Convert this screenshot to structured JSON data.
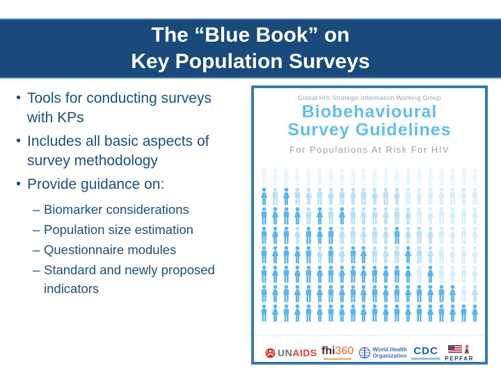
{
  "slide": {
    "title_line1": "The “Blue Book” on",
    "title_line2": "Key Population Surveys",
    "bullets": [
      {
        "lines": [
          "Tools for conducting surveys",
          "with KPs"
        ]
      },
      {
        "lines": [
          "Includes all basic aspects of",
          "survey methodology"
        ]
      },
      {
        "lines": [
          "Provide guidance on:"
        ]
      }
    ],
    "sub_bullets": [
      {
        "lines": [
          "Biomarker considerations"
        ]
      },
      {
        "lines": [
          "Population size estimation"
        ]
      },
      {
        "lines": [
          "Questionnaire modules"
        ]
      },
      {
        "lines": [
          "Standard and newly proposed",
          "indicators"
        ]
      }
    ]
  },
  "cover": {
    "kicker": "Global HIV Strategic Information Working Group",
    "title_line1": "Biobehavioural",
    "title_line2": "Survey Guidelines",
    "subtitle": "For Populations At Risk For HIV",
    "logos": {
      "unaids_un": "UN",
      "unaids_aids": "AIDS",
      "fhi": "fhi",
      "fhi_num": "360",
      "who_line1": "World Health",
      "who_line2": "Organization",
      "cdc": "CDC",
      "pepfar": "PEPFAR"
    },
    "people_grid": {
      "cols": 20,
      "colors": {
        "d": "#5fb6e8",
        "m": "#bce0f4",
        "l": "#daeef9",
        "u": "#ebf5fc"
      },
      "rows": [
        {
          "start": "M",
          "shades": "uuuuuuuuuuuuuuuuuuuu"
        },
        {
          "start": "F",
          "shades": "dmdmmmmmmmmmmlllllll"
        },
        {
          "start": "M",
          "shades": "ddddmdmdmmmmmmllllll"
        },
        {
          "start": "M",
          "shades": "dddmdddmmmmmdmmmllll"
        },
        {
          "start": "M",
          "shades": "dddddmdmddmmmdmmllll"
        },
        {
          "start": "M",
          "shades": "ddddddddddddddldllll"
        },
        {
          "start": "M",
          "shades": "ddddddddddddddddddlm"
        },
        {
          "start": "M",
          "shades": "dddddddddddddddddddd"
        }
      ]
    }
  },
  "colors": {
    "header_bg": "#1a4a7b",
    "body_text": "#1e4e79",
    "cover_border": "#3c78b2",
    "cover_title": "#62bee9",
    "muted_text": "#9ba1a8",
    "person_highlight": "#5fb6e8",
    "person_pale": "#daeef9"
  }
}
